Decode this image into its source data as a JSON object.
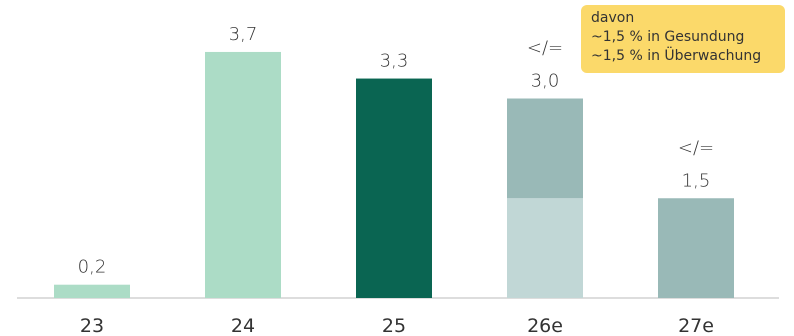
{
  "chart_data": {
    "type": "bar",
    "categories": [
      "23",
      "24",
      "25",
      "26e",
      "27e"
    ],
    "values": [
      0.2,
      3.7,
      3.3,
      3.0,
      1.5
    ],
    "value_labels": [
      "0,2",
      "3,7",
      "3,3",
      "3,0",
      "1,5"
    ],
    "prefix_labels": [
      "",
      "",
      "",
      "</=",
      "</="
    ],
    "stacked_split": {
      "26e": [
        1.5,
        1.5
      ]
    },
    "ylim": [
      0,
      4.0
    ],
    "grid": false,
    "legend": "none",
    "title": "",
    "xlabel": "",
    "ylabel": ""
  },
  "annotation": {
    "lines": [
      "davon",
      "~1,5 % in Gesundung",
      "~1,5 % in Überwachung"
    ],
    "background": "#fbd96a"
  },
  "colors": {
    "bar_light": "#acdcc6",
    "bar_dark": "#0a6552",
    "bar_gray": "#99b9b7",
    "bar_gray_light": "#c1d7d6",
    "baseline": "#dddddd",
    "text": "#333333"
  }
}
